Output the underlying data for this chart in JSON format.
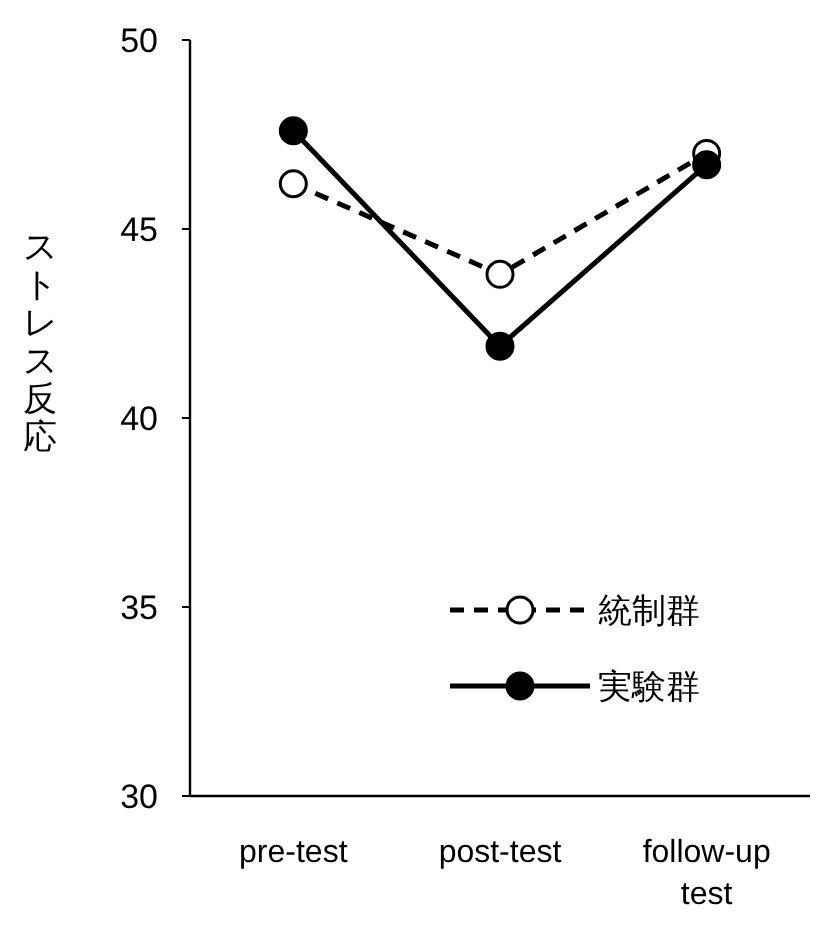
{
  "chart_data": {
    "type": "line",
    "ylabel": "ストレス反応",
    "categories": [
      "pre-test",
      "post-test",
      "follow-up test"
    ],
    "series": [
      {
        "name": "統制群",
        "color": "#000000",
        "line_style": "dashed",
        "values": [
          46.2,
          43.8,
          47.0
        ]
      },
      {
        "name": "実験群",
        "color": "#000000",
        "line_style": "solid",
        "values": [
          47.6,
          41.9,
          46.7
        ]
      }
    ],
    "ylim": [
      30,
      50
    ],
    "yticks": [
      30,
      35,
      40,
      45,
      50
    ],
    "marker": "circle",
    "legend": "bottom right",
    "grid": false
  }
}
